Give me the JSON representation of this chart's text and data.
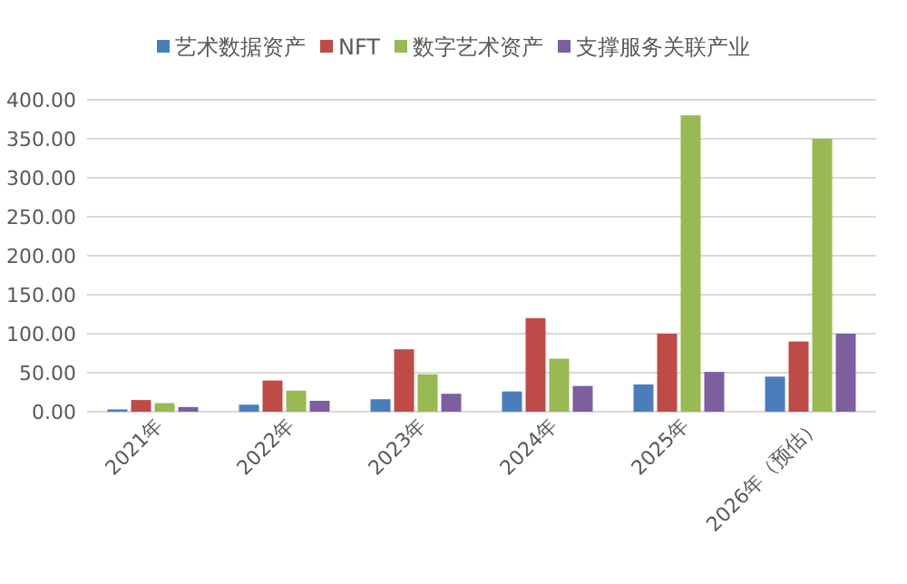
{
  "chart_data": {
    "type": "bar",
    "categories": [
      "2021年",
      "2022年",
      "2023年",
      "2024年",
      "2025年",
      "2026年（预估）"
    ],
    "series": [
      {
        "name": "艺术数据资产",
        "color": "#4a7ebb",
        "values": [
          3,
          9,
          16,
          26,
          35,
          45
        ]
      },
      {
        "name": "NFT",
        "color": "#be4b48",
        "values": [
          15,
          40,
          80,
          120,
          100,
          90
        ]
      },
      {
        "name": "数字艺术资产",
        "color": "#98b954",
        "values": [
          11,
          27,
          48,
          68,
          380,
          350
        ]
      },
      {
        "name": "支撑服务关联产业",
        "color": "#7d5fa0",
        "values": [
          6,
          14,
          23,
          33,
          51,
          100
        ]
      }
    ],
    "ylim": [
      0,
      400
    ],
    "yticks": [
      {
        "value": 0,
        "label": "0.00"
      },
      {
        "value": 50,
        "label": "50.00"
      },
      {
        "value": 100,
        "label": "100.00"
      },
      {
        "value": 150,
        "label": "150.00"
      },
      {
        "value": 200,
        "label": "200.00"
      },
      {
        "value": 250,
        "label": "250.00"
      },
      {
        "value": 300,
        "label": "300.00"
      },
      {
        "value": 350,
        "label": "350.00"
      },
      {
        "value": 400,
        "label": "400.00"
      }
    ],
    "grid": "y",
    "legend": "top"
  }
}
